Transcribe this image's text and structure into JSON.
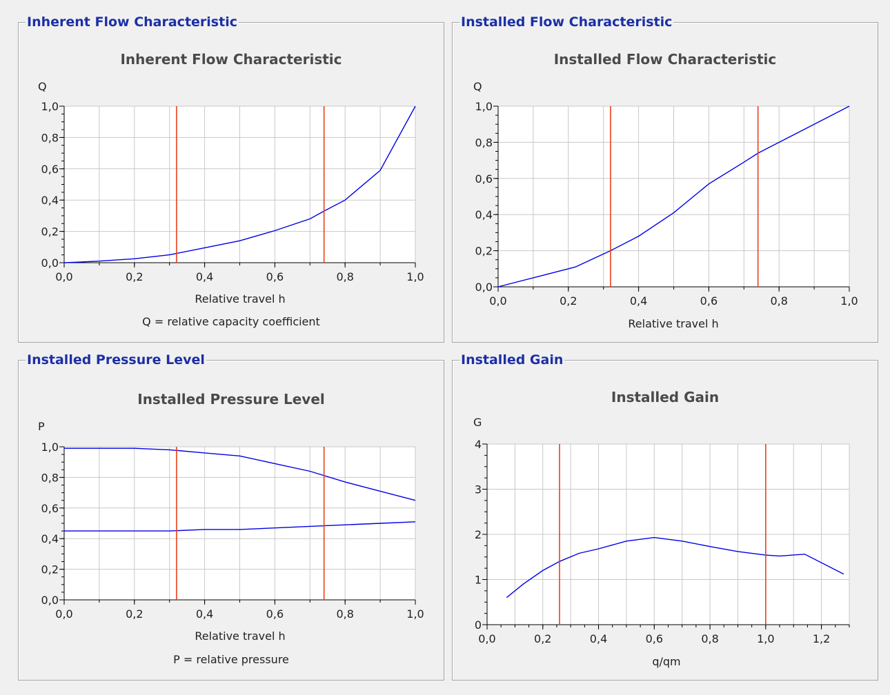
{
  "colors": {
    "series": "#0000e6",
    "marker": "#e8401c",
    "grid": "#c8c8c8",
    "legend": "#1c2fa6"
  },
  "chart_data": [
    {
      "id": "inherent",
      "type": "line",
      "group_title": "Inherent Flow Characteristic",
      "title": "Inherent Flow Characteristic",
      "ylabel": "Q",
      "xlabel": "Relative travel h",
      "footnote": "Q = relative capacity coefficient",
      "xlim": [
        0,
        1
      ],
      "ylim": [
        0,
        1
      ],
      "xticks": [
        "0,0",
        "0,2",
        "0,4",
        "0,6",
        "0,8",
        "1,0"
      ],
      "yticks": [
        "0,0",
        "0,2",
        "0,4",
        "0,6",
        "0,8",
        "1,0"
      ],
      "series": [
        {
          "name": "Q",
          "x": [
            0,
            0.05,
            0.1,
            0.2,
            0.3,
            0.4,
            0.5,
            0.6,
            0.7,
            0.74,
            0.8,
            0.9,
            1.0
          ],
          "y": [
            0,
            0.005,
            0.01,
            0.025,
            0.05,
            0.095,
            0.14,
            0.205,
            0.28,
            0.33,
            0.4,
            0.59,
            1.0
          ]
        }
      ],
      "markers": [
        0.32,
        0.74
      ]
    },
    {
      "id": "installed-flow",
      "type": "line",
      "group_title": "Installed Flow Characteristic",
      "title": "Installed Flow Characteristic",
      "ylabel": "Q",
      "xlabel": "Relative travel h",
      "xlim": [
        0,
        1
      ],
      "ylim": [
        0,
        1
      ],
      "xticks": [
        "0,0",
        "0,2",
        "0,4",
        "0,6",
        "0,8",
        "1,0"
      ],
      "yticks": [
        "0,0",
        "0,2",
        "0,4",
        "0,6",
        "0,8",
        "1,0"
      ],
      "series": [
        {
          "name": "Q",
          "x": [
            0,
            0.1,
            0.22,
            0.32,
            0.4,
            0.5,
            0.6,
            0.7,
            0.74,
            0.8,
            0.9,
            1.0
          ],
          "y": [
            0,
            0.05,
            0.11,
            0.2,
            0.28,
            0.41,
            0.57,
            0.69,
            0.74,
            0.8,
            0.9,
            1.0
          ]
        }
      ],
      "markers": [
        0.32,
        0.74
      ]
    },
    {
      "id": "pressure",
      "type": "line",
      "group_title": "Installed Pressure Level",
      "title": "Installed Pressure Level",
      "ylabel": "P",
      "xlabel": "Relative travel h",
      "footnote": "P = relative pressure",
      "xlim": [
        0,
        1
      ],
      "ylim": [
        0,
        1
      ],
      "xticks": [
        "0,0",
        "0,2",
        "0,4",
        "0,6",
        "0,8",
        "1,0"
      ],
      "yticks": [
        "0,0",
        "0,2",
        "0,4",
        "0,6",
        "0,8",
        "1,0"
      ],
      "series": [
        {
          "name": "P upper",
          "x": [
            0,
            0.1,
            0.2,
            0.3,
            0.4,
            0.5,
            0.6,
            0.7,
            0.8,
            0.9,
            1.0
          ],
          "y": [
            0.99,
            0.99,
            0.99,
            0.98,
            0.96,
            0.94,
            0.89,
            0.84,
            0.77,
            0.71,
            0.65
          ]
        },
        {
          "name": "P lower",
          "x": [
            0,
            0.1,
            0.2,
            0.3,
            0.4,
            0.5,
            0.6,
            0.7,
            0.8,
            0.9,
            1.0
          ],
          "y": [
            0.45,
            0.45,
            0.45,
            0.45,
            0.46,
            0.46,
            0.47,
            0.48,
            0.49,
            0.5,
            0.51
          ]
        }
      ],
      "markers": [
        0.32,
        0.74
      ]
    },
    {
      "id": "gain",
      "type": "line",
      "group_title": "Installed Gain",
      "title": "Installed Gain",
      "ylabel": "G",
      "xlabel": "q/qm",
      "xlim": [
        0,
        1.3
      ],
      "ylim": [
        0,
        4
      ],
      "xticks": [
        "0,0",
        "0,2",
        "0,4",
        "0,6",
        "0,8",
        "1,0",
        "1,2"
      ],
      "yticks": [
        "0",
        "1",
        "2",
        "3",
        "4"
      ],
      "series": [
        {
          "name": "G",
          "x": [
            0.07,
            0.13,
            0.2,
            0.26,
            0.33,
            0.4,
            0.5,
            0.6,
            0.7,
            0.8,
            0.9,
            1.0,
            1.05,
            1.14,
            1.28
          ],
          "y": [
            0.6,
            0.9,
            1.2,
            1.4,
            1.58,
            1.68,
            1.85,
            1.93,
            1.85,
            1.73,
            1.62,
            1.54,
            1.52,
            1.56,
            1.12
          ]
        }
      ],
      "markers": [
        0.26,
        1.0
      ]
    }
  ]
}
